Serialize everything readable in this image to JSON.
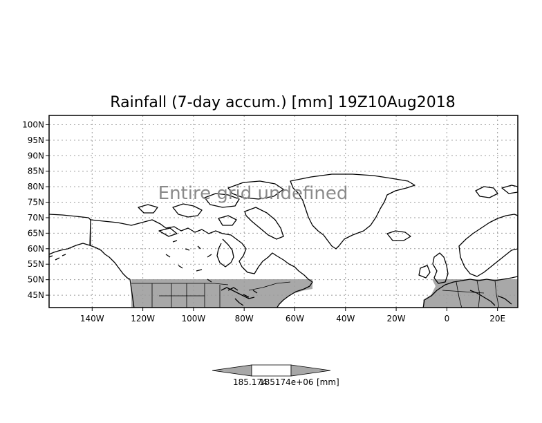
{
  "map": {
    "title": "Rainfall (7-day accum.) [mm] 19Z10Aug2018",
    "overlay_text": "Entire grid undefined",
    "lon_labels": [
      "140W",
      "120W",
      "100W",
      "80W",
      "60W",
      "40W",
      "20W",
      "0",
      "20E"
    ],
    "lat_labels": [
      "100N",
      "95N",
      "90N",
      "85N",
      "80N",
      "75N",
      "70N",
      "65N",
      "60N",
      "55N",
      "50N",
      "45N"
    ],
    "lon_values": [
      -140,
      -120,
      -100,
      -80,
      -60,
      -40,
      -20,
      0,
      20
    ],
    "lat_values": [
      100,
      95,
      90,
      85,
      80,
      75,
      70,
      65,
      60,
      55,
      50,
      45
    ],
    "lon_range": [
      -157,
      28
    ],
    "lat_range": [
      41,
      103
    ],
    "grid": true,
    "shaded_color": "#a8a8a8",
    "shaded_lat_range": [
      41,
      50
    ],
    "colorbar": {
      "label_left": "185.174",
      "label_mid": "185174e+06",
      "label_unit": "[mm]",
      "fill_color": "#a8a8a8"
    }
  }
}
